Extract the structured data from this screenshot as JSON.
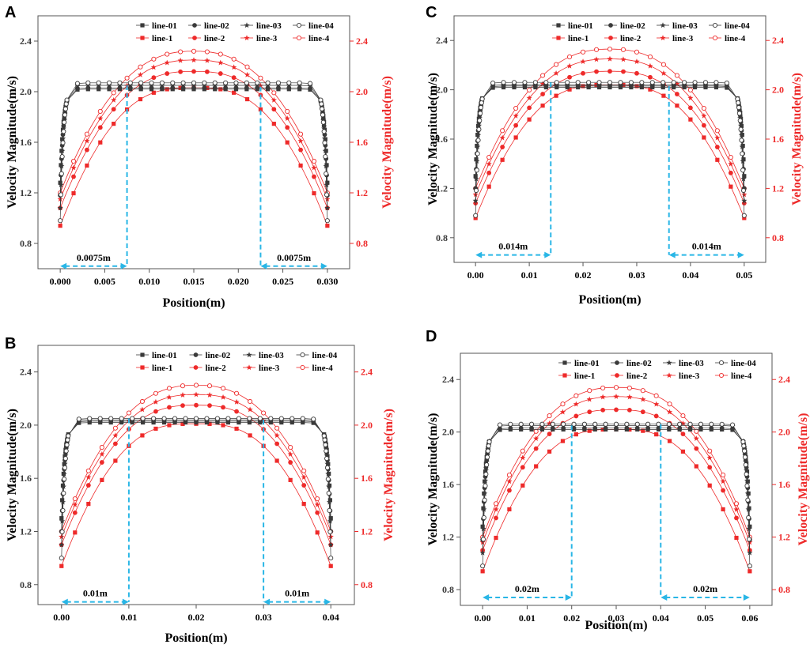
{
  "colors": {
    "black": "#3a3a3a",
    "red": "#ee2a2a",
    "blue": "#29b6e6",
    "frame": "#555555"
  },
  "chart_data": [
    {
      "panel": "A",
      "type": "line",
      "xlabel": "Position(m)",
      "ylabel_left": "Velocity Magnitude(m/s)",
      "ylabel_right": "Velocity Magnitude(m/s)",
      "xlim": [
        -0.0025,
        0.0325
      ],
      "ylim": [
        0.6,
        2.6
      ],
      "x_ticks": [
        0,
        0.005,
        0.01,
        0.015,
        0.02,
        0.025,
        0.03
      ],
      "x_tick_labels": [
        "0.000",
        "0.005",
        "0.010",
        "0.015",
        "0.020",
        "0.025",
        "0.030"
      ],
      "y_ticks": [
        0.8,
        1.2,
        1.6,
        2.0,
        2.4
      ],
      "y_tick_labels": [
        "0.8",
        "1.2",
        "1.6",
        "2.0",
        "2.4"
      ],
      "width_m": 0.03,
      "black_series": [
        {
          "name": "line-01",
          "marker": "square",
          "center": 2.02,
          "edge": 1.28
        },
        {
          "name": "line-02",
          "marker": "circle",
          "center": 2.03,
          "edge": 1.18
        },
        {
          "name": "line-03",
          "marker": "star",
          "center": 2.05,
          "edge": 1.08
        },
        {
          "name": "line-04",
          "marker": "circle-open",
          "center": 2.07,
          "edge": 0.98
        }
      ],
      "red_series": [
        {
          "name": "line-1",
          "marker": "square",
          "center": 2.09,
          "edge": 0.94,
          "dip": 0.06
        },
        {
          "name": "line-2",
          "marker": "circle",
          "center": 2.19,
          "edge": 1.08,
          "dip": 0.03
        },
        {
          "name": "line-3",
          "marker": "star",
          "center": 2.26,
          "edge": 1.15,
          "dip": 0.01
        },
        {
          "name": "line-4",
          "marker": "circle-open",
          "center": 2.32,
          "edge": 1.2,
          "dip": 0.0
        }
      ],
      "annotations": [
        {
          "label": "0.0075m",
          "from": 0.0,
          "to": 0.0075,
          "y": 0.62,
          "line_x": 0.0075,
          "line_top": 2.05
        },
        {
          "label": "0.0075m",
          "from": 0.0225,
          "to": 0.03,
          "y": 0.62,
          "line_x": 0.0225,
          "line_top": 2.04
        }
      ]
    },
    {
      "panel": "B",
      "type": "line",
      "xlabel": "Position(m)",
      "ylabel_left": "Velocity Magnitude(m/s)",
      "ylabel_right": "Velocity Magnitude(m/s)",
      "xlim": [
        -0.0035,
        0.0435
      ],
      "ylim": [
        0.65,
        2.6
      ],
      "x_ticks": [
        0,
        0.01,
        0.02,
        0.03,
        0.04
      ],
      "x_tick_labels": [
        "0.00",
        "0.01",
        "0.02",
        "0.03",
        "0.04"
      ],
      "y_ticks": [
        0.8,
        1.2,
        1.6,
        2.0,
        2.4
      ],
      "y_tick_labels": [
        "0.8",
        "1.2",
        "1.6",
        "2.0",
        "2.4"
      ],
      "width_m": 0.04,
      "black_series": [
        {
          "name": "line-01",
          "marker": "square",
          "center": 2.02,
          "edge": 1.3
        },
        {
          "name": "line-02",
          "marker": "circle",
          "center": 2.03,
          "edge": 1.2
        },
        {
          "name": "line-03",
          "marker": "star",
          "center": 2.04,
          "edge": 1.1
        },
        {
          "name": "line-04",
          "marker": "circle-open",
          "center": 2.05,
          "edge": 1.0
        }
      ],
      "red_series": [
        {
          "name": "line-1",
          "marker": "square",
          "center": 2.07,
          "edge": 0.94,
          "dip": 0.06
        },
        {
          "name": "line-2",
          "marker": "circle",
          "center": 2.18,
          "edge": 1.1,
          "dip": 0.03
        },
        {
          "name": "line-3",
          "marker": "star",
          "center": 2.24,
          "edge": 1.16,
          "dip": 0.01
        },
        {
          "name": "line-4",
          "marker": "circle-open",
          "center": 2.3,
          "edge": 1.2,
          "dip": 0.0
        }
      ],
      "annotations": [
        {
          "label": "0.01m",
          "from": 0.0,
          "to": 0.01,
          "y": 0.67,
          "line_x": 0.01,
          "line_top": 2.05
        },
        {
          "label": "0.01m",
          "from": 0.03,
          "to": 0.04,
          "y": 0.67,
          "line_x": 0.03,
          "line_top": 2.04
        }
      ]
    },
    {
      "panel": "C",
      "type": "line",
      "xlabel": "Position(m)",
      "ylabel_left": "Velocity Magnitude(m/s)",
      "ylabel_right": "Velocity Magnitude(m/s)",
      "xlim": [
        -0.004,
        0.054
      ],
      "ylim": [
        0.6,
        2.6
      ],
      "x_ticks": [
        0,
        0.01,
        0.02,
        0.03,
        0.04,
        0.05
      ],
      "x_tick_labels": [
        "0.00",
        "0.01",
        "0.02",
        "0.03",
        "0.04",
        "0.05"
      ],
      "y_ticks": [
        0.8,
        1.2,
        1.6,
        2.0,
        2.4
      ],
      "y_tick_labels": [
        "0.8",
        "1.2",
        "1.6",
        "2.0",
        "2.4"
      ],
      "width_m": 0.05,
      "black_series": [
        {
          "name": "line-01",
          "marker": "square",
          "center": 2.02,
          "edge": 1.3
        },
        {
          "name": "line-02",
          "marker": "circle",
          "center": 2.03,
          "edge": 1.2
        },
        {
          "name": "line-03",
          "marker": "star",
          "center": 2.04,
          "edge": 1.1
        },
        {
          "name": "line-04",
          "marker": "circle-open",
          "center": 2.06,
          "edge": 0.98
        }
      ],
      "red_series": [
        {
          "name": "line-1",
          "marker": "square",
          "center": 2.1,
          "edge": 0.96,
          "dip": 0.06
        },
        {
          "name": "line-2",
          "marker": "circle",
          "center": 2.18,
          "edge": 1.08,
          "dip": 0.03
        },
        {
          "name": "line-3",
          "marker": "star",
          "center": 2.26,
          "edge": 1.15,
          "dip": 0.01
        },
        {
          "name": "line-4",
          "marker": "circle-open",
          "center": 2.33,
          "edge": 1.2,
          "dip": 0.0
        }
      ],
      "annotations": [
        {
          "label": "0.014m",
          "from": 0.0,
          "to": 0.014,
          "y": 0.66,
          "line_x": 0.014,
          "line_top": 2.06
        },
        {
          "label": "0.014m",
          "from": 0.036,
          "to": 0.05,
          "y": 0.66,
          "line_x": 0.036,
          "line_top": 2.03
        }
      ]
    },
    {
      "panel": "D",
      "type": "line",
      "xlabel": "Position(m)",
      "ylabel_left": "Velocity Magnitude(m/s)",
      "ylabel_right": "Velocity Magnitude(m/s)",
      "xlim": [
        -0.005,
        0.065
      ],
      "ylim": [
        0.68,
        2.6
      ],
      "x_ticks": [
        0,
        0.01,
        0.02,
        0.03,
        0.04,
        0.05,
        0.06
      ],
      "x_tick_labels": [
        "0.00",
        "0.01",
        "0.02",
        "0.03",
        "0.04",
        "0.05",
        "0.06"
      ],
      "y_ticks": [
        0.8,
        1.2,
        1.6,
        2.0,
        2.4
      ],
      "y_tick_labels": [
        "0.8",
        "1.2",
        "1.6",
        "2.0",
        "2.4"
      ],
      "width_m": 0.06,
      "black_series": [
        {
          "name": "line-01",
          "marker": "square",
          "center": 2.02,
          "edge": 1.28
        },
        {
          "name": "line-02",
          "marker": "circle",
          "center": 2.03,
          "edge": 1.18
        },
        {
          "name": "line-03",
          "marker": "star",
          "center": 2.05,
          "edge": 1.08
        },
        {
          "name": "line-04",
          "marker": "circle-open",
          "center": 2.06,
          "edge": 0.98
        }
      ],
      "red_series": [
        {
          "name": "line-1",
          "marker": "square",
          "center": 2.08,
          "edge": 0.94,
          "dip": 0.06
        },
        {
          "name": "line-2",
          "marker": "circle",
          "center": 2.2,
          "edge": 1.1,
          "dip": 0.03
        },
        {
          "name": "line-3",
          "marker": "star",
          "center": 2.28,
          "edge": 1.16,
          "dip": 0.01
        },
        {
          "name": "line-4",
          "marker": "circle-open",
          "center": 2.34,
          "edge": 1.2,
          "dip": 0.0
        }
      ],
      "annotations": [
        {
          "label": "0.02m",
          "from": 0.0,
          "to": 0.02,
          "y": 0.74,
          "line_x": 0.02,
          "line_top": 2.05
        },
        {
          "label": "0.02m",
          "from": 0.04,
          "to": 0.06,
          "y": 0.74,
          "line_x": 0.04,
          "line_top": 2.06
        }
      ]
    }
  ]
}
